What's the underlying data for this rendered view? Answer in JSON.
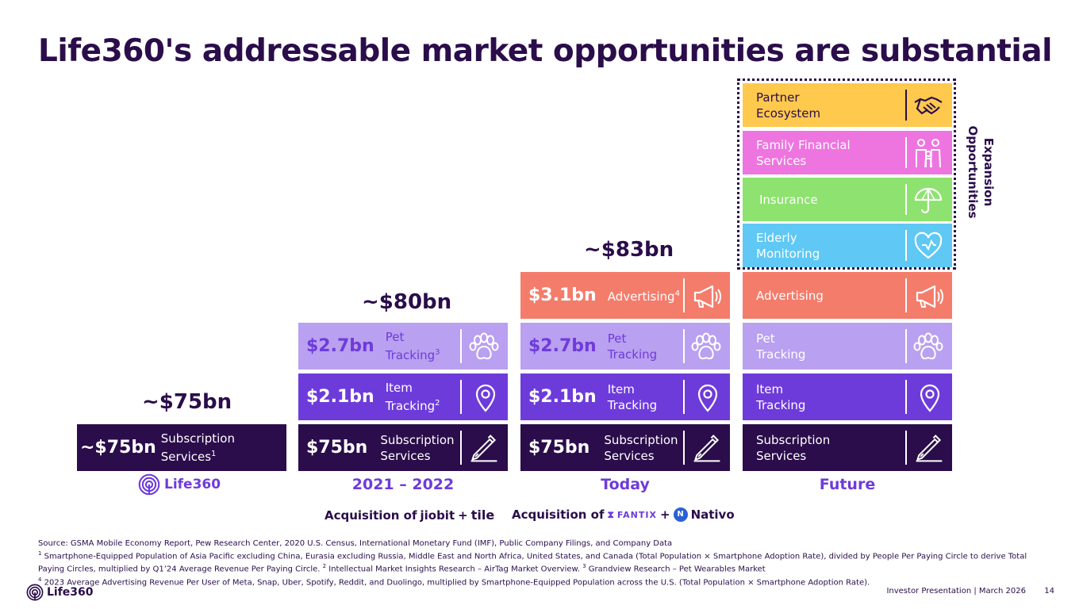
{
  "title": "Life360's addressable market opportunities are substantial",
  "colors": {
    "subscription": "#2a0d4a",
    "item_tracking": "#6e3bdb",
    "pet_tracking": "#b9a0f0",
    "advertising": "#f47c6b",
    "elderly_monitoring": "#5fc8f5",
    "insurance": "#8ee26f",
    "family_financial": "#ee75e0",
    "partner_ecosystem": "#ffc94d"
  },
  "chart_data": {
    "type": "bar",
    "title": "Life360's addressable market opportunities are substantial",
    "categories": [
      "Life360",
      "2021 – 2022",
      "Today",
      "Future"
    ],
    "unit": "$bn",
    "totals": [
      "~$75bn",
      "~$80bn",
      "~$83bn",
      ""
    ],
    "series": [
      {
        "name": "Subscription Services",
        "values": [
          75,
          75,
          75,
          null
        ],
        "labels": [
          "~$75bn",
          "$75bn",
          "$75bn",
          ""
        ]
      },
      {
        "name": "Item Tracking",
        "values": [
          null,
          2.1,
          2.1,
          null
        ],
        "labels": [
          "",
          "$2.1bn",
          "$2.1bn",
          ""
        ]
      },
      {
        "name": "Pet Tracking",
        "values": [
          null,
          2.7,
          2.7,
          null
        ],
        "labels": [
          "",
          "$2.7bn",
          "$2.7bn",
          ""
        ]
      },
      {
        "name": "Advertising",
        "values": [
          null,
          null,
          3.1,
          null
        ],
        "labels": [
          "",
          "",
          "$3.1bn",
          ""
        ]
      }
    ],
    "expansion_label": "Expansion Opportunities",
    "expansion_items": [
      "Elderly Monitoring",
      "Insurance",
      "Family Financial Services",
      "Partner Ecosystem"
    ]
  },
  "totals": {
    "col1": "~$75bn",
    "col2": "~$80bn",
    "col3": "~$83bn"
  },
  "col1": {
    "sub_amount": "~$75bn",
    "sub_label_1": "Subscription",
    "sub_label_2": "Services",
    "sub_sup": "1"
  },
  "col2": {
    "sub_amount": "$75bn",
    "sub_label_1": "Subscription",
    "sub_label_2": "Services",
    "item_amount": "$2.1bn",
    "item_label_1": "Item",
    "item_label_2": "Tracking",
    "item_sup": "2",
    "pet_amount": "$2.7bn",
    "pet_label_1": "Pet",
    "pet_label_2": "Tracking",
    "pet_sup": "3"
  },
  "col3": {
    "sub_amount": "$75bn",
    "sub_label_1": "Subscription",
    "sub_label_2": "Services",
    "item_amount": "$2.1bn",
    "item_label_1": "Item",
    "item_label_2": "Tracking",
    "pet_amount": "$2.7bn",
    "pet_label_1": "Pet",
    "pet_label_2": "Tracking",
    "adv_amount": "$3.1bn",
    "adv_label": "Advertising",
    "adv_sup": "4"
  },
  "col4": {
    "sub_label_1": "Subscription",
    "sub_label_2": "Services",
    "item_label_1": "Item",
    "item_label_2": "Tracking",
    "pet_label_1": "Pet",
    "pet_label_2": "Tracking",
    "adv_label": "Advertising",
    "eld_label_1": "Elderly",
    "eld_label_2": "Monitoring",
    "ins_label": "Insurance",
    "fam_label_1": "Family Financial",
    "fam_label_2": "Services",
    "par_label_1": "Partner",
    "par_label_2": "Ecosystem"
  },
  "expansion_1": "Expansion",
  "expansion_2": "Opportunities",
  "periods": {
    "col1_logo": "Life360",
    "col2": "2021 – 2022",
    "col3": "Today",
    "col4": "Future"
  },
  "acquisitions": {
    "a1_prefix": "Acquisition of",
    "a1_brand1": "jiobit",
    "a1_plus": "+",
    "a1_brand2": "tile",
    "a2_prefix": "Acquisition of",
    "a2_brand1": "FANTIX",
    "a2_plus": "+",
    "a2_brand2": "Nativo"
  },
  "footnotes": {
    "source": "Source: GSMA Mobile Economy Report, Pew Research Center, 2020 U.S. Census, International Monetary Fund (IMF), Public Company Filings, and Company Data",
    "n1_mark": "1",
    "n1": " Smartphone-Equipped Population of Asia Pacific excluding China, Eurasia excluding Russia, Middle East and North Africa, United States, and Canada (Total Population × Smartphone Adoption Rate), divided by People Per Paying Circle to derive Total Paying Circles, multiplied by Q1’24 Average Revenue Per Paying Circle. ",
    "n2_mark": "2",
    "n2": " Intellectual Market Insights Research – AirTag Market Overview. ",
    "n3_mark": "3",
    "n3": " Grandview Research – Pet Wearables Market",
    "n4_mark": "4",
    "n4": " 2023 Average Advertising Revenue Per User of Meta, Snap, Uber, Spotify, Reddit, and Duolingo, multiplied by Smartphone-Equipped Population across the U.S. (Total Population × Smartphone Adoption Rate)."
  },
  "footer": {
    "logo": "Life360",
    "presentation": "Investor Presentation  |  March 2026",
    "page": "14"
  }
}
